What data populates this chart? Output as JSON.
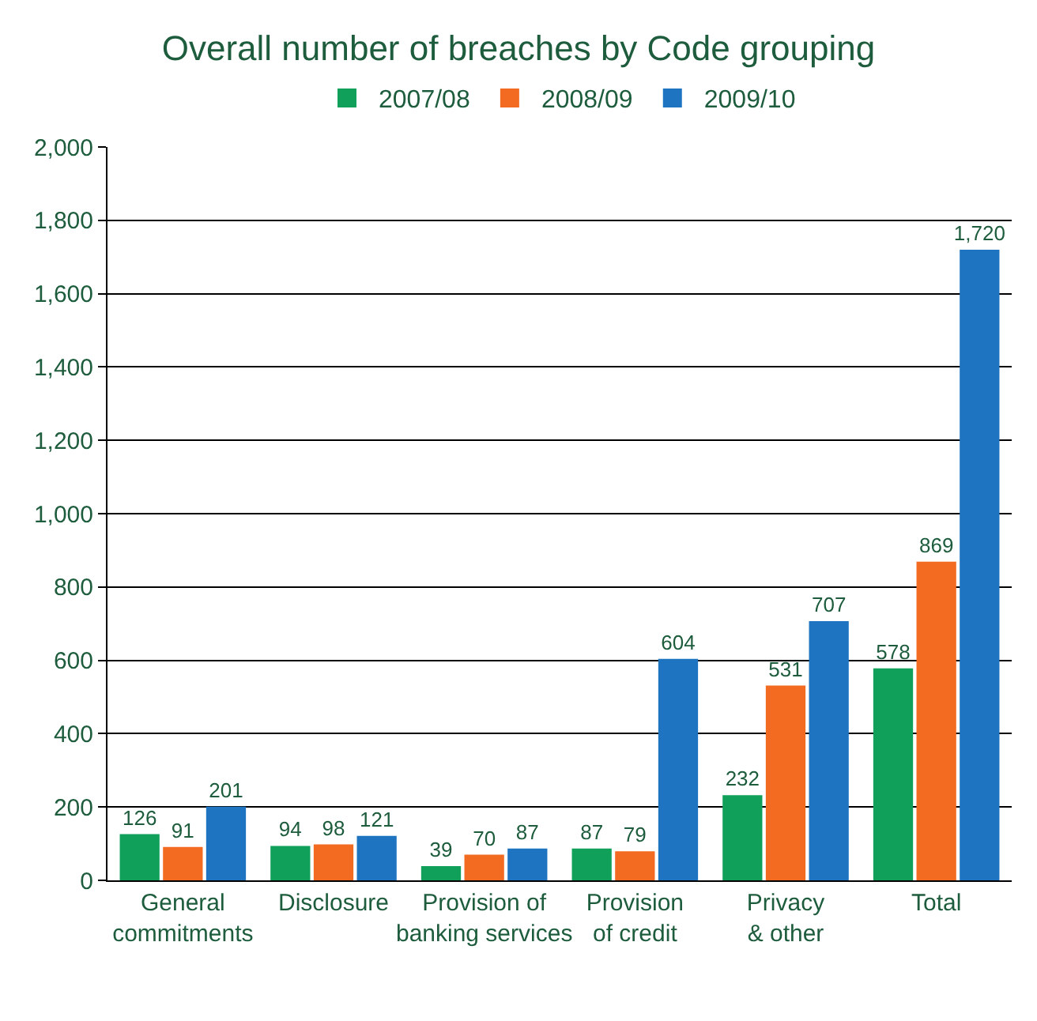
{
  "chart_data": {
    "type": "bar",
    "title": "Overall number of breaches by Code grouping",
    "categories": [
      "General\ncommitments",
      "Disclosure",
      "Provision of\nbanking services",
      "Provision\nof credit",
      "Privacy\n& other",
      "Total"
    ],
    "series": [
      {
        "name": "2007/08",
        "color": "#10a05a",
        "values": [
          126,
          94,
          39,
          87,
          232,
          578
        ],
        "value_labels": [
          "126",
          "94",
          "39",
          "87",
          "232",
          "578"
        ]
      },
      {
        "name": "2008/09",
        "color": "#f26b21",
        "values": [
          91,
          98,
          70,
          79,
          531,
          869
        ],
        "value_labels": [
          "91",
          "98",
          "70",
          "79",
          "531",
          "869"
        ]
      },
      {
        "name": "2009/10",
        "color": "#1f74c1",
        "values": [
          201,
          121,
          87,
          604,
          707,
          1720
        ],
        "value_labels": [
          "201",
          "121",
          "87",
          "604",
          "707",
          "1,720"
        ]
      }
    ],
    "ylim": [
      0,
      2000
    ],
    "yticks": [
      0,
      {
        "value": 200,
        "label": "200"
      },
      {
        "value": 400,
        "label": "400"
      },
      {
        "value": 600,
        "label": "600"
      },
      {
        "value": 800,
        "label": "800"
      },
      {
        "value": 1000,
        "label": "1,000"
      },
      {
        "value": 1200,
        "label": "1,200"
      },
      {
        "value": 1400,
        "label": "1,400"
      },
      {
        "value": 1600,
        "label": "1,600"
      },
      {
        "value": 1800,
        "label": "1,800"
      },
      {
        "value": 2000,
        "label": "2,000"
      }
    ],
    "grid": "y",
    "legend": "top"
  }
}
